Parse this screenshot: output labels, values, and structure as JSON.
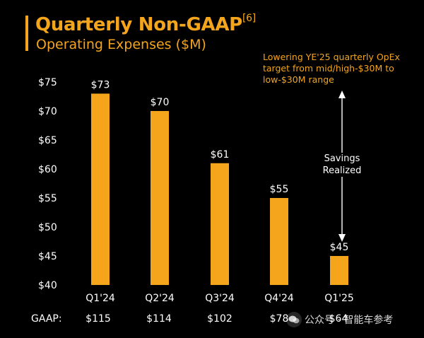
{
  "header": {
    "title": "Quarterly Non-GAAP",
    "footnote": "[6]",
    "subtitle": "Operating Expenses ($M)"
  },
  "annotations": {
    "callout": "Lowering YE'25 quarterly OpEx target from mid/high-$30M to low-$30M range",
    "savings_line1": "Savings",
    "savings_line2": "Realized"
  },
  "gaap": {
    "label": "GAAP:",
    "values": [
      "$115",
      "$114",
      "$102",
      "$78",
      "$64"
    ]
  },
  "watermark": {
    "text": "公众号 · 智能车参考"
  },
  "colors": {
    "accent": "#f4a51c",
    "background": "#000000",
    "text": "#ffffff"
  },
  "chart_data": {
    "type": "bar",
    "title": "Quarterly Non-GAAP Operating Expenses ($M)",
    "categories": [
      "Q1'24",
      "Q2'24",
      "Q3'24",
      "Q4'24",
      "Q1'25"
    ],
    "values": [
      73,
      70,
      61,
      55,
      45
    ],
    "data_labels": [
      "$73",
      "$70",
      "$61",
      "$55",
      "$45"
    ],
    "ylim": [
      40,
      75
    ],
    "yticks": [
      40,
      45,
      50,
      55,
      60,
      65,
      70,
      75
    ],
    "ytick_labels": [
      "$40",
      "$45",
      "$50",
      "$55",
      "$60",
      "$65",
      "$70",
      "$75"
    ],
    "xlabel": "",
    "ylabel": "",
    "grid": false
  }
}
